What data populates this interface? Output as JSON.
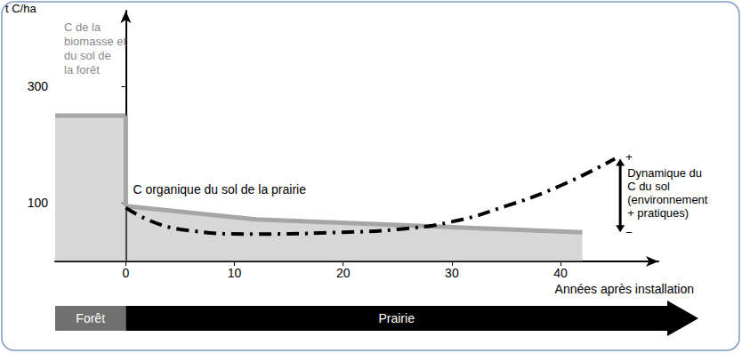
{
  "chart_data": {
    "type": "line",
    "y_label": "t C/ha",
    "x_label": "Années après installation",
    "xlim": [
      -6.5,
      49
    ],
    "ylim": [
      0,
      430
    ],
    "xticks": [
      0,
      10,
      20,
      30,
      40
    ],
    "yticks": [
      100,
      300
    ],
    "grid": false,
    "series": [
      {
        "name": "C de la biomasse et du sol de la forêt",
        "type": "area",
        "color": "#a6a6a6",
        "line_style": "solid",
        "x": [
          -6.5,
          0
        ],
        "values": [
          250,
          250
        ]
      },
      {
        "name": "C organique du sol de la prairie",
        "type": "area",
        "color": "#a6a6a6",
        "line_style": "solid",
        "x": [
          0,
          12,
          42
        ],
        "values": [
          95,
          72,
          50
        ]
      },
      {
        "type": "line",
        "color": "#000000",
        "line_style": "dashdot",
        "x": [
          0,
          5,
          12,
          20,
          25,
          30,
          35,
          40,
          45
        ],
        "values": [
          92,
          55,
          47,
          50,
          55,
          68,
          95,
          130,
          176
        ]
      }
    ],
    "annotations": {
      "range_top": "+",
      "range_bottom": "−",
      "range_label": "Dynamique du C du sol (environnement + pratiques)"
    },
    "phases": [
      {
        "label": "Forêt",
        "start": -6.5,
        "end": 0,
        "color": "#707070"
      },
      {
        "label": "Prairie",
        "start": 0,
        "end": 49,
        "color": "#000000"
      }
    ]
  }
}
